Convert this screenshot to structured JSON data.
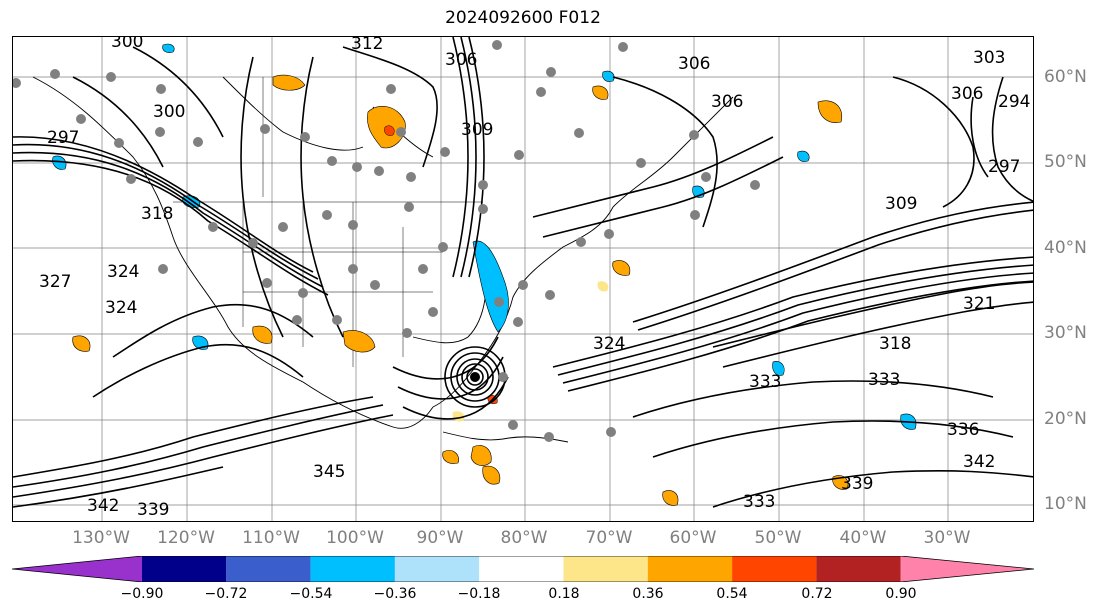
{
  "title": "2024092600 F012",
  "lat_labels": [
    "60°N",
    "50°N",
    "40°N",
    "30°N",
    "20°N",
    "10°N"
  ],
  "lon_labels": [
    "130°W",
    "120°W",
    "110°W",
    "100°W",
    "90°W",
    "80°W",
    "70°W",
    "60°W",
    "50°W",
    "40°W",
    "30°W"
  ],
  "contour_labels": [
    "300",
    "312",
    "306",
    "306",
    "306",
    "303",
    "306",
    "300",
    "294",
    "297",
    "309",
    "309",
    "297",
    "318",
    "324",
    "327",
    "324",
    "321",
    "318",
    "324",
    "333",
    "333",
    "336",
    "339",
    "342",
    "342",
    "339",
    "345",
    "333"
  ],
  "colorbar": {
    "ticks": [
      "−0.90",
      "−0.72",
      "−0.54",
      "−0.36",
      "−0.18",
      "0.18",
      "0.36",
      "0.54",
      "0.72",
      "0.90"
    ],
    "colors": [
      "#9932cc",
      "#00008b",
      "#3a5fcd",
      "#00bfff",
      "#aee2fb",
      "#ffffff",
      "#fde68a",
      "#ffa500",
      "#ff4500",
      "#b22222",
      "#ff82ab"
    ]
  }
}
